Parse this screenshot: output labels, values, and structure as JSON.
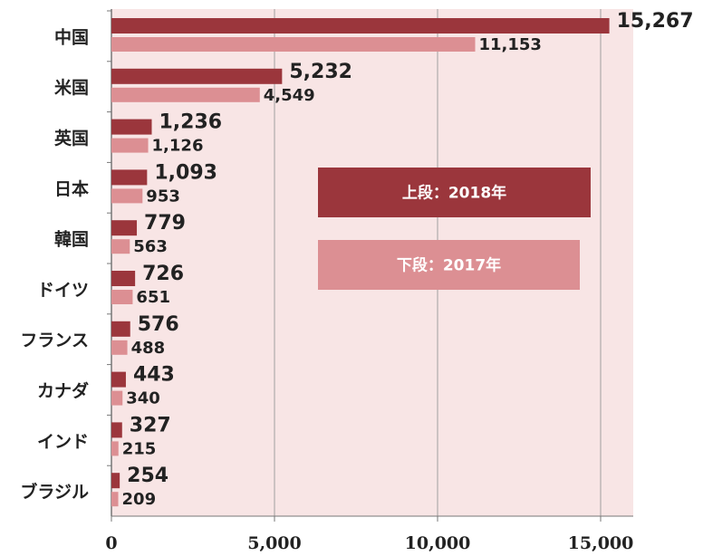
{
  "chart_data": {
    "type": "bar",
    "orientation": "horizontal",
    "categories": [
      "中国",
      "米国",
      "英国",
      "日本",
      "韓国",
      "ドイツ",
      "フランス",
      "カナダ",
      "インド",
      "ブラジル"
    ],
    "series": [
      {
        "name": "上段：2018年",
        "color": "#9b363c",
        "values": [
          15267,
          5232,
          1236,
          1093,
          779,
          726,
          576,
          443,
          327,
          254
        ],
        "value_labels": [
          "15,267",
          "5,232",
          "1,236",
          "1,093",
          "779",
          "726",
          "576",
          "443",
          "327",
          "254"
        ]
      },
      {
        "name": "下段：2017年",
        "color": "#dc8f93",
        "values": [
          11153,
          4549,
          1126,
          953,
          563,
          651,
          488,
          340,
          215,
          209
        ],
        "value_labels": [
          "11,153",
          "4,549",
          "1,126",
          "953",
          "563",
          "651",
          "488",
          "340",
          "215",
          "209"
        ]
      }
    ],
    "xlim": [
      0,
      16000
    ],
    "xticks": [
      0,
      {
        "value": 5000,
        "label": "5,000"
      },
      {
        "value": 10000,
        "label": "10,000"
      },
      {
        "value": 15000,
        "label": "15,000"
      }
    ],
    "grid": true
  }
}
